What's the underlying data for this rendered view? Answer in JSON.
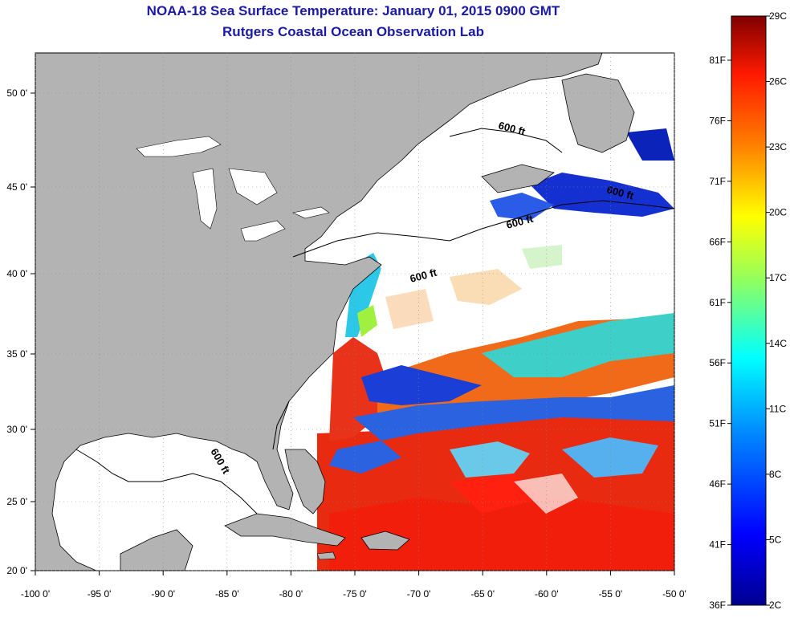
{
  "header": {
    "title": "NOAA-18 Sea Surface Temperature:  January 01, 2015 0900 GMT",
    "subtitle": "Rutgers Coastal Ocean Observation Lab"
  },
  "axes": {
    "lon_ticks": [
      "-100 0'",
      "-95 0'",
      "-90 0'",
      "-85 0'",
      "-80 0'",
      "-75 0'",
      "-70 0'",
      "-65 0'",
      "-60 0'",
      "-55 0'",
      "-50 0'"
    ],
    "lat_ticks": [
      "50 0'",
      "45 0'",
      "40 0'",
      "35 0'",
      "30 0'",
      "25 0'",
      "20 0'"
    ]
  },
  "contour_label": "600 ft",
  "colorbar": {
    "celsius_labels": [
      "29C",
      "26C",
      "23C",
      "20C",
      "17C",
      "14C",
      "11C",
      "8C",
      "5C",
      "2C"
    ],
    "fahrenheit_labels": [
      "81F",
      "76F",
      "71F",
      "66F",
      "61F",
      "56F",
      "51F",
      "46F",
      "41F",
      "36F"
    ],
    "colors": [
      "#7f0000",
      "#d40000",
      "#ff3000",
      "#ff9000",
      "#ffe800",
      "#9cff5c",
      "#2cffd0",
      "#00a0ff",
      "#0030ff",
      "#00008f"
    ]
  },
  "colors": {
    "land": "#b3b3b3",
    "title": "#1a1aa6"
  }
}
